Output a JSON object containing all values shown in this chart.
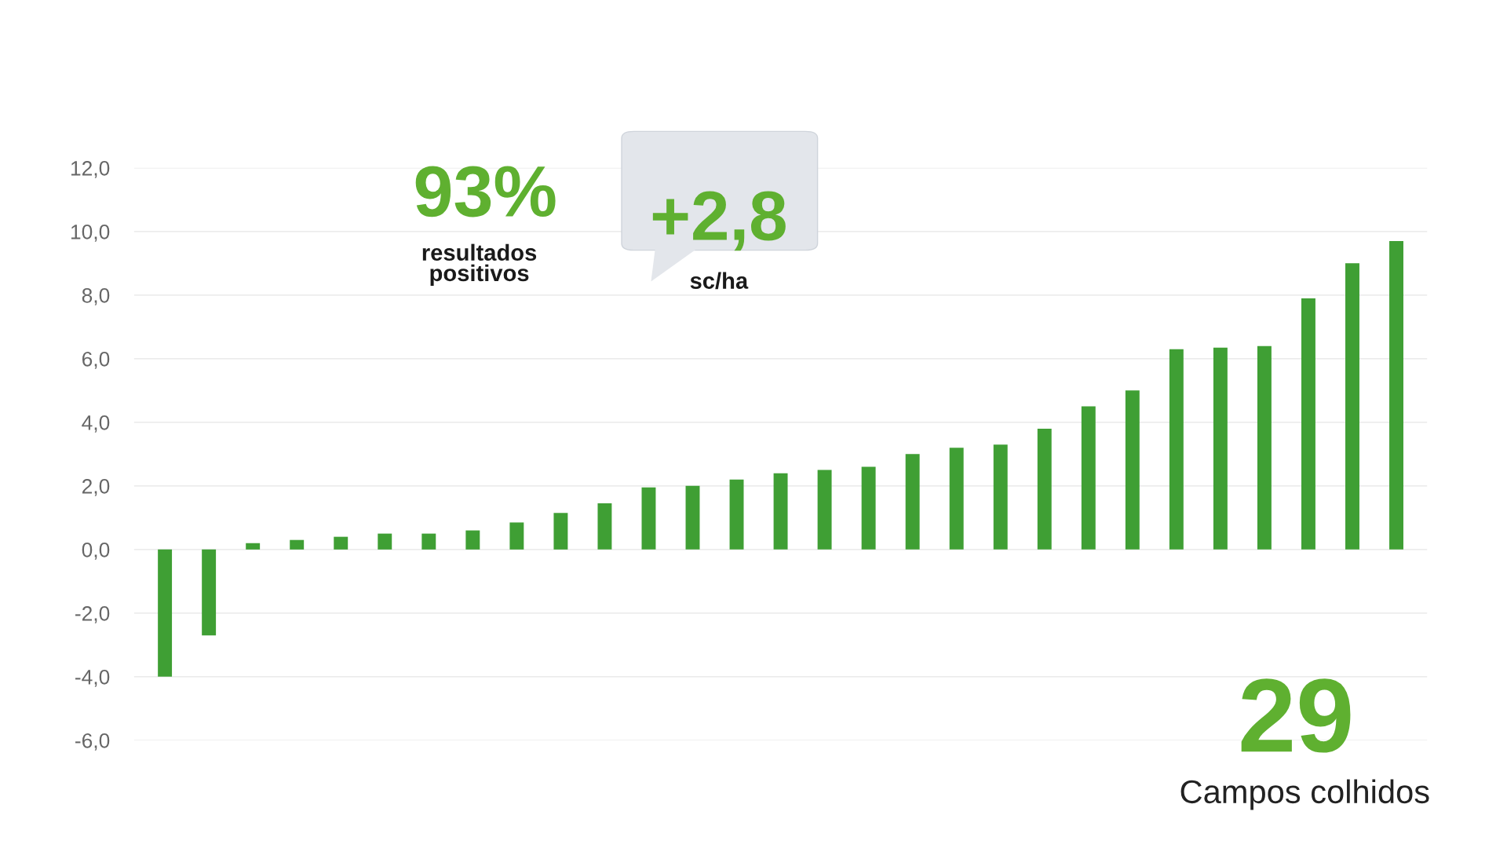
{
  "chart_data": {
    "type": "bar",
    "categories": [
      null,
      null,
      null,
      null,
      null,
      null,
      null,
      null,
      null,
      null,
      null,
      null,
      null,
      null,
      null,
      null,
      null,
      null,
      null,
      null,
      null,
      null,
      null,
      null,
      null,
      null,
      null,
      null,
      null
    ],
    "values": [
      -4.0,
      -2.7,
      0.2,
      0.3,
      0.4,
      0.5,
      0.5,
      0.6,
      0.85,
      1.15,
      1.45,
      1.95,
      2.0,
      2.2,
      2.4,
      2.5,
      2.6,
      3.0,
      3.2,
      3.3,
      3.8,
      4.5,
      5.0,
      6.3,
      6.35,
      6.4,
      7.9,
      9.0,
      9.7
    ],
    "color": "#3f9f34",
    "ylim": [
      -6,
      12
    ],
    "yticks": [
      {
        "value": -6,
        "label": "-6,0"
      },
      {
        "value": -4,
        "label": "-4,0"
      },
      {
        "value": -2,
        "label": "-2,0"
      },
      {
        "value": 0,
        "label": "0,0"
      },
      {
        "value": 2,
        "label": "2,0"
      },
      {
        "value": 4,
        "label": "4,0"
      },
      {
        "value": 6,
        "label": "6,0"
      },
      {
        "value": 8,
        "label": "8,0"
      },
      {
        "value": 10,
        "label": "10,0"
      },
      {
        "value": 12,
        "label": "12,0"
      }
    ],
    "grid": "y",
    "annotations": [
      "93%",
      "resultados\npositivos",
      "+2,8",
      "sc/ha",
      "29",
      "Campos colhidos"
    ]
  }
}
